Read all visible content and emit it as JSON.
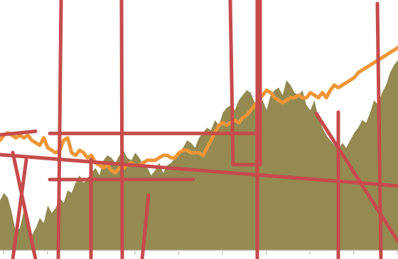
{
  "chart_data": {
    "type": "area",
    "title": "",
    "xlabel": "",
    "ylabel": "",
    "grid": false,
    "legend": "none",
    "xlim": [
      0,
      100
    ],
    "ylim": [
      0,
      100
    ],
    "series": [
      {
        "kind": "area",
        "color": "#948a52",
        "x": [
          0,
          1,
          2,
          3,
          4,
          5,
          6,
          7,
          8,
          9,
          10,
          11,
          12,
          13,
          14,
          15,
          16,
          17,
          18,
          19,
          20,
          21,
          22,
          23,
          24,
          25,
          26,
          27,
          28,
          29,
          30,
          31,
          32,
          33,
          34,
          35,
          36,
          37,
          38,
          39,
          40,
          41,
          42,
          43,
          44,
          45,
          46,
          47,
          48,
          49,
          50,
          51,
          52,
          53,
          54,
          55,
          56,
          57,
          58,
          59,
          60,
          61,
          62,
          63,
          64,
          65,
          66,
          67,
          68,
          69,
          70,
          71,
          72,
          73,
          74,
          75,
          76,
          77,
          78,
          79,
          80,
          81,
          82,
          83,
          84,
          85,
          86,
          87,
          88,
          89,
          90,
          91,
          92,
          93,
          94,
          95,
          96,
          97,
          98,
          99,
          100
        ],
        "y": [
          20,
          23,
          21,
          15,
          7,
          9,
          16,
          11,
          6,
          9,
          13,
          11,
          18,
          15,
          17,
          21,
          19,
          24,
          23,
          27,
          30,
          27,
          29,
          31,
          33,
          30,
          36,
          38,
          37,
          35,
          38,
          40,
          37,
          36,
          39,
          37,
          34,
          33,
          30,
          32,
          35,
          31,
          34,
          35,
          37,
          39,
          41,
          44,
          43,
          41,
          45,
          47,
          49,
          48,
          52,
          50,
          55,
          57,
          58,
          56,
          60,
          62,
          64,
          63,
          59,
          58,
          60,
          56,
          62,
          64,
          65,
          62,
          68,
          66,
          63,
          62,
          64,
          58,
          56,
          60,
          53,
          49,
          46,
          44,
          42,
          40,
          43,
          41,
          44,
          47,
          49,
          52,
          51,
          55,
          60,
          58,
          63,
          66,
          71,
          74,
          76
        ]
      },
      {
        "kind": "line",
        "color": "#ee9638",
        "x": [
          0,
          1,
          2,
          3,
          4,
          5,
          6,
          7,
          8,
          9,
          10,
          11,
          12,
          13,
          14,
          15,
          16,
          17,
          18,
          19,
          20,
          21,
          22,
          23,
          24,
          25,
          26,
          27,
          28,
          29,
          30,
          31,
          32,
          33,
          34,
          35,
          36,
          37,
          38,
          39,
          40,
          41,
          42,
          43,
          44,
          45,
          46,
          47,
          48,
          49,
          50,
          51,
          52,
          53,
          54,
          55,
          56,
          57,
          58,
          59,
          60,
          61,
          62,
          63,
          64,
          65,
          66,
          67,
          68,
          69,
          70,
          71,
          72,
          73,
          74,
          75,
          76,
          77,
          78,
          79,
          80,
          81,
          82,
          83,
          84,
          85,
          86,
          87,
          88,
          89,
          90,
          91,
          92,
          93,
          94,
          95,
          96,
          97,
          98,
          99,
          100
        ],
        "y": [
          44,
          46,
          47,
          46,
          45,
          46,
          45,
          46,
          44,
          43,
          42,
          45,
          41,
          40,
          39,
          40,
          44,
          45,
          39,
          38,
          40,
          39,
          37,
          38,
          35,
          34,
          33,
          34,
          32,
          31,
          33,
          33,
          34,
          35,
          34,
          34,
          35,
          36,
          36,
          36,
          37,
          38,
          38,
          37,
          37,
          39,
          40,
          40,
          39,
          39,
          39,
          38,
          41,
          44,
          47,
          50,
          51,
          50,
          51,
          52,
          51,
          53,
          54,
          56,
          58,
          60,
          62,
          64,
          63,
          61,
          60,
          59,
          60,
          61,
          61,
          62,
          61,
          61,
          63,
          62,
          61,
          63,
          61,
          64,
          66,
          65,
          66,
          67,
          68,
          69,
          71,
          72,
          73,
          74,
          75,
          76,
          77,
          78,
          79,
          80,
          81
        ]
      }
    ]
  }
}
